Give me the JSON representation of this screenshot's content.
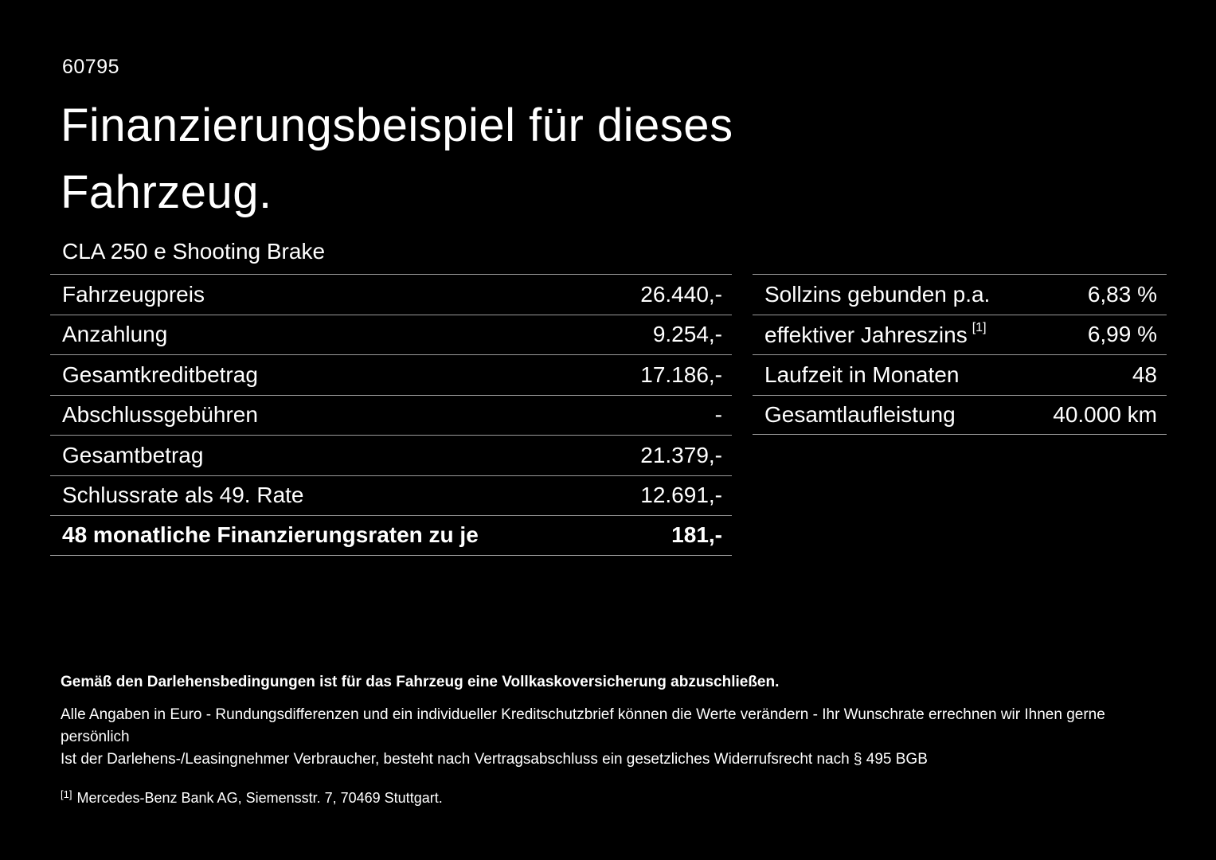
{
  "page": {
    "doc_number": "60795",
    "title_line1": "Finanzierungsbeispiel für dieses",
    "title_line2": "Fahrzeug.",
    "vehicle_name": "CLA 250 e Shooting Brake"
  },
  "tables": {
    "left": {
      "rows": [
        {
          "label": "Fahrzeugpreis",
          "value": "26.440,-"
        },
        {
          "label": "Anzahlung",
          "value": "9.254,-"
        },
        {
          "label": "Gesamtkreditbetrag",
          "value": "17.186,-"
        },
        {
          "label": "Abschlussgebühren",
          "value": "-"
        },
        {
          "label": "Gesamtbetrag",
          "value": "21.379,-"
        },
        {
          "label": "Schlussrate als 49. Rate",
          "value": "12.691,-"
        },
        {
          "label": "48 monatliche Finanzierungsraten zu je",
          "value": "181,-"
        }
      ]
    },
    "right": {
      "rows": [
        {
          "label": "Sollzins gebunden p.a.",
          "value": "6,83 %"
        },
        {
          "label": "effektiver Jahreszins",
          "footnote": "[1]",
          "value": "6,99 %"
        },
        {
          "label": "Laufzeit in Monaten",
          "value": "48"
        },
        {
          "label": "Gesamtlaufleistung",
          "value": "40.000 km"
        }
      ]
    }
  },
  "footer": {
    "bold_note": "Gemäß den Darlehensbedingungen ist für das Fahrzeug eine Vollkaskoversicherung abzuschließen.",
    "note1": "Alle Angaben in Euro - Rundungsdifferenzen und ein individueller Kreditschutzbrief können die Werte verändern - Ihr Wunschrate errechnen wir Ihnen gerne persönlich",
    "note2": "Ist der Darlehens-/Leasingnehmer Verbraucher, besteht nach Vertragsabschluss ein gesetzliches Widerrufsrecht nach § 495 BGB",
    "footnote_marker": "[1]",
    "footnote_text": "Mercedes-Benz Bank AG, Siemensstr. 7, 70469 Stuttgart."
  },
  "colors": {
    "background": "#000000",
    "text": "#ffffff",
    "divider": "#9b9b9b"
  }
}
